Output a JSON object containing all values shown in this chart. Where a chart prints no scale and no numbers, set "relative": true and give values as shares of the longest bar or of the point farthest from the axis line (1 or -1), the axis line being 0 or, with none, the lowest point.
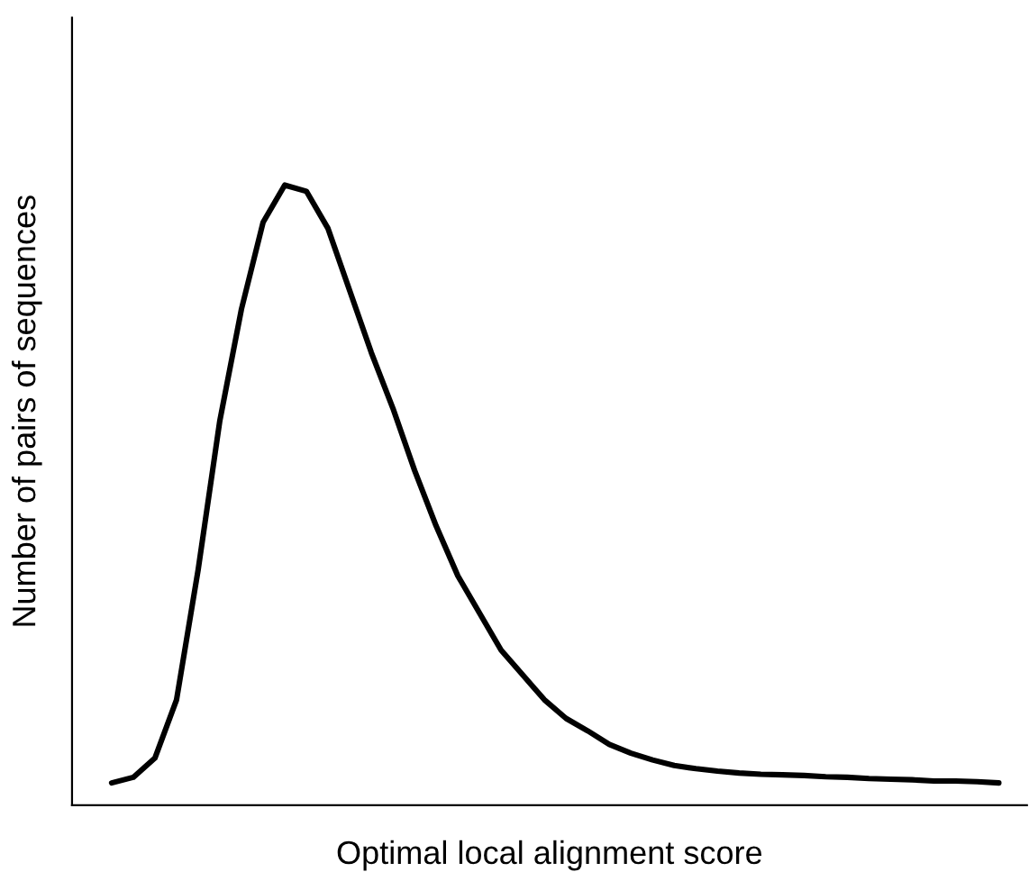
{
  "chart_data": {
    "type": "line",
    "relative": true,
    "xlabel": "Optimal local alignment score",
    "ylabel": "Number of pairs of sequences",
    "tick_labels": false,
    "categories": [
      null,
      null,
      null,
      null,
      null,
      null,
      null,
      null,
      null,
      null,
      null,
      null,
      null,
      null,
      null,
      null,
      null,
      null,
      null,
      null,
      null,
      null,
      null,
      null,
      null,
      null,
      null,
      null,
      null,
      null,
      null,
      null,
      null,
      null,
      null,
      null,
      null,
      null,
      null,
      null,
      null,
      null
    ],
    "series": [
      {
        "color": "#000000",
        "values": [
          0.036,
          0.045,
          0.076,
          0.17,
          0.38,
          0.62,
          0.8,
          0.94,
          1.0,
          0.99,
          0.93,
          0.83,
          0.73,
          0.64,
          0.54,
          0.45,
          0.37,
          0.31,
          0.25,
          0.21,
          0.17,
          0.14,
          0.12,
          0.098,
          0.084,
          0.073,
          0.064,
          0.059,
          0.055,
          0.052,
          0.05,
          0.049,
          0.048,
          0.046,
          0.045,
          0.043,
          0.042,
          0.041,
          0.039,
          0.039,
          0.038,
          0.036
        ]
      }
    ]
  }
}
